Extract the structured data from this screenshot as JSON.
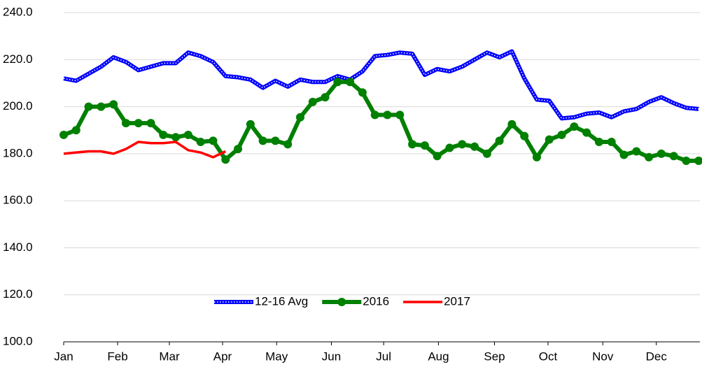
{
  "chart_data": {
    "type": "line",
    "x": [
      1,
      2,
      3,
      4,
      5,
      6,
      7,
      8,
      9,
      10,
      11,
      12,
      13,
      14,
      15,
      16,
      17,
      18,
      19,
      20,
      21,
      22,
      23,
      24,
      25,
      26,
      27,
      28,
      29,
      30,
      31,
      32,
      33,
      34,
      35,
      36,
      37,
      38,
      39,
      40,
      41,
      42,
      43,
      44,
      45,
      46,
      47,
      48,
      49,
      50,
      51,
      52
    ],
    "xlim": [
      1,
      52.1
    ],
    "xticks": [
      {
        "value": 1,
        "label": "Jan"
      },
      {
        "value": 5.33,
        "label": "Feb"
      },
      {
        "value": 9.49,
        "label": "Mar"
      },
      {
        "value": 13.76,
        "label": "Apr"
      },
      {
        "value": 18.1,
        "label": "May"
      },
      {
        "value": 22.5,
        "label": "Jun"
      },
      {
        "value": 26.7,
        "label": "Jul"
      },
      {
        "value": 31.1,
        "label": "Aug"
      },
      {
        "value": 35.6,
        "label": "Sep"
      },
      {
        "value": 39.9,
        "label": "Oct"
      },
      {
        "value": 44.3,
        "label": "Nov"
      },
      {
        "value": 48.6,
        "label": "Dec"
      }
    ],
    "ylim": [
      100,
      240
    ],
    "yticks": [
      {
        "value": 100,
        "label": "100.0"
      },
      {
        "value": 120,
        "label": "120.0"
      },
      {
        "value": 140,
        "label": "140.0"
      },
      {
        "value": 160,
        "label": "160.0"
      },
      {
        "value": 180,
        "label": "180.0"
      },
      {
        "value": 200,
        "label": "200.0"
      },
      {
        "value": 220,
        "label": "220.0"
      },
      {
        "value": 240,
        "label": "240.0"
      }
    ],
    "grid": true,
    "legend": "bottom",
    "series": [
      {
        "name": "12-16 Avg",
        "color": "#0000ff",
        "values": [
          212,
          211,
          214,
          217,
          221,
          219,
          215.5,
          217,
          218.5,
          218.5,
          223,
          221.5,
          219,
          213,
          212.5,
          211.5,
          208,
          211,
          208.5,
          211.5,
          210.5,
          210.5,
          213,
          211.5,
          215,
          221.5,
          222,
          223,
          222.5,
          213.5,
          216,
          215,
          217,
          220,
          223,
          221,
          223.5,
          212,
          203,
          202.5,
          195,
          195.5,
          197,
          197.5,
          195.5,
          198,
          199,
          202,
          204,
          201.5,
          199.5,
          199
        ]
      },
      {
        "name": "2016",
        "color": "#008000",
        "values": [
          188,
          190,
          200,
          200,
          201,
          193,
          193,
          193,
          188,
          187,
          188,
          185,
          185.5,
          177.5,
          182,
          192.5,
          185.5,
          185.5,
          184,
          195.5,
          202,
          204,
          210.5,
          210.5,
          206,
          196.5,
          196.5,
          196.5,
          184,
          183.5,
          179,
          182.5,
          184,
          183,
          180,
          185.5,
          192.5,
          187.5,
          178.5,
          186,
          188,
          191.5,
          189,
          185,
          185,
          179.5,
          181,
          178.5,
          180,
          179,
          177,
          177
        ]
      },
      {
        "name": "2017",
        "color": "#ff0000",
        "values": [
          180,
          180.5,
          181,
          181,
          180,
          182,
          185,
          184.5,
          184.5,
          185,
          181.5,
          180.5,
          178.5,
          181,
          null,
          null,
          null,
          null,
          null,
          null,
          null,
          null,
          null,
          null,
          null,
          null,
          null,
          null,
          null,
          null,
          null,
          null,
          null,
          null,
          null,
          null,
          null,
          null,
          null,
          null,
          null,
          null,
          null,
          null,
          null,
          null,
          null,
          null,
          null,
          null,
          null,
          null
        ]
      }
    ]
  }
}
